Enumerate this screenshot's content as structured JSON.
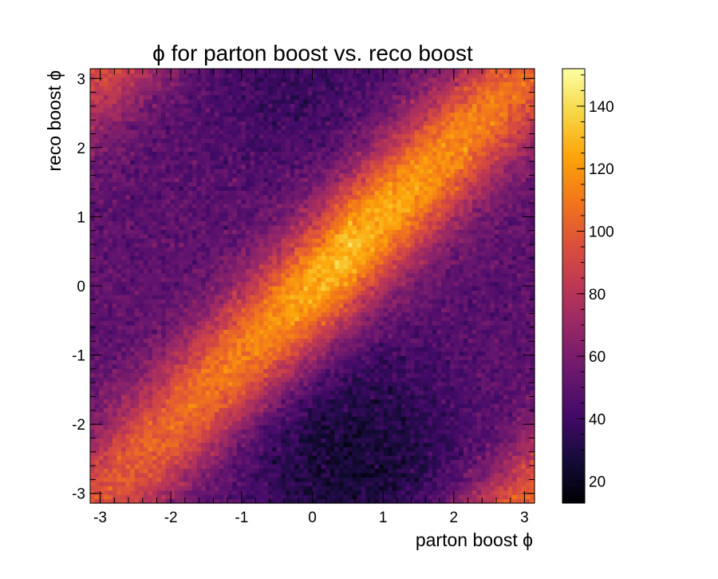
{
  "chart_data": {
    "type": "heatmap",
    "title": "ϕ for parton boost vs. reco boost",
    "xlabel": "parton boost ϕ",
    "ylabel": "reco boost ϕ",
    "xlim": [
      -3.1416,
      3.1416
    ],
    "ylim": [
      -3.1416,
      3.1416
    ],
    "x_ticks": [
      -3,
      -2,
      -1,
      0,
      1,
      2,
      3
    ],
    "y_ticks": [
      -3,
      -2,
      -1,
      0,
      1,
      2,
      3
    ],
    "bins": {
      "nx": 100,
      "ny": 100
    },
    "colorbar": {
      "range": [
        13,
        152
      ],
      "ticks": [
        20,
        40,
        60,
        80,
        100,
        120,
        140
      ],
      "colormap": "inferno"
    },
    "model": {
      "description": "ridge along reco = parton (wrapped), background ~50, peak ~135 near (0.5,0.5), lowest ~20 near (0.5,-2.5)",
      "background": 50,
      "ridge_sigma": 0.75,
      "ridge_center_scale": 82,
      "ridge_edge_scale": 44,
      "ridge_peak_x": 0.5,
      "hole_amplitude": 25,
      "hole_center": [
        0.6,
        -2.5
      ],
      "noise": 7
    }
  }
}
